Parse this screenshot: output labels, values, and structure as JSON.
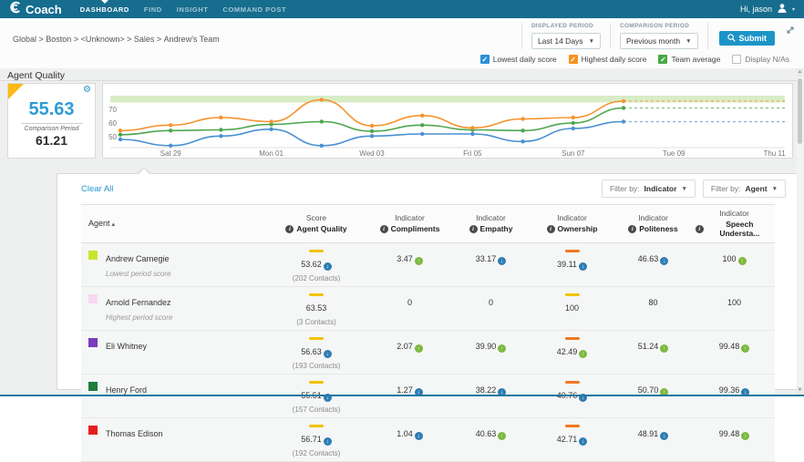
{
  "header": {
    "logo_text": "Coach",
    "nav": [
      {
        "label": "DASHBOARD",
        "active": true
      },
      {
        "label": "FIND",
        "active": false
      },
      {
        "label": "INSIGHT",
        "active": false
      },
      {
        "label": "COMMAND POST",
        "active": false
      }
    ],
    "user_greeting": "Hi, jason"
  },
  "subheader": {
    "breadcrumb": [
      "Global",
      "Boston",
      "<Unknown>",
      "Sales",
      "Andrew's Team"
    ],
    "displayed_period": {
      "label": "DISPLAYED PERIOD",
      "value": "Last 14 Days"
    },
    "comparison_period": {
      "label": "COMPARISON PERIOD",
      "value": "Previous month"
    },
    "submit_label": "Submit"
  },
  "legend_toggles": [
    {
      "label": "Lowest daily score",
      "checked": true,
      "color": "#2b8fd6"
    },
    {
      "label": "Highest daily score",
      "checked": true,
      "color": "#f5921e"
    },
    {
      "label": "Team average",
      "checked": true,
      "color": "#45a845"
    },
    {
      "label": "Display N/As",
      "checked": false,
      "color": "#cccccc"
    }
  ],
  "kpi": {
    "section_title": "Agent Quality",
    "score": "55.63",
    "comparison_label": "Comparison Period",
    "comparison_score": "61.21"
  },
  "chart_data": {
    "type": "line",
    "title": "Agent Quality",
    "x": [
      "Fri 28",
      "Sat 29",
      "Sun 30",
      "Mon 01",
      "Tue 02",
      "Wed 03",
      "Thu 04",
      "Fri 05",
      "Sat 06",
      "Sun 07",
      "Mon 08"
    ],
    "x_axis_labels": [
      "Sat 29",
      "Mon 01",
      "Wed 03",
      "Fri 05",
      "Sun 07",
      "Tue 09",
      "Thu 11"
    ],
    "days_displayed": 14,
    "series": [
      {
        "name": "Lowest daily score",
        "color": "#4a90d2",
        "values": [
          48,
          43.5,
          50.5,
          55.5,
          43.5,
          50.5,
          52,
          52,
          46.5,
          56,
          61
        ]
      },
      {
        "name": "Team average",
        "color": "#4ca64c",
        "values": [
          51.5,
          54.5,
          55,
          59,
          61,
          54,
          58.5,
          55,
          54.5,
          60,
          71
        ]
      },
      {
        "name": "Highest daily score",
        "color": "#f5922f",
        "values": [
          54.5,
          58.5,
          64,
          61,
          77,
          58,
          65.5,
          56.5,
          63,
          64,
          76
        ]
      }
    ],
    "projection_dashed": true,
    "y_ticks": [
      50,
      60,
      70
    ],
    "ylim": [
      42,
      82
    ],
    "target_band": [
      75,
      80
    ],
    "grid": false,
    "legend_position": "top-right-toggles"
  },
  "table": {
    "clear_all_label": "Clear All",
    "filters": [
      {
        "label": "Filter by:",
        "value": "Indicator"
      },
      {
        "label": "Filter by:",
        "value": "Agent"
      }
    ],
    "columns": [
      {
        "top": "Agent",
        "sort": "asc"
      },
      {
        "top": "Score",
        "bottom": "Agent Quality"
      },
      {
        "top": "Indicator",
        "bottom": "Compliments"
      },
      {
        "top": "Indicator",
        "bottom": "Empathy"
      },
      {
        "top": "Indicator",
        "bottom": "Ownership"
      },
      {
        "top": "Indicator",
        "bottom": "Politeness"
      },
      {
        "top": "Indicator",
        "bottom": "Speech Understa..."
      }
    ],
    "rows": [
      {
        "name": "Andrew Carnegie",
        "swatch": "#c7e52e",
        "subtitle": "Lowest period score",
        "score": {
          "dash": "yellow",
          "value": "53.62",
          "trend": "down",
          "contacts": "(202 Contacts)"
        },
        "indicators": [
          {
            "value": "3.47",
            "trend": "up"
          },
          {
            "value": "33.17",
            "trend": "down"
          },
          {
            "value": "39.11",
            "trend": "down",
            "dash": "orange"
          },
          {
            "value": "46.63",
            "trend": "down"
          },
          {
            "value": "100",
            "trend": "up"
          }
        ]
      },
      {
        "name": "Arnold Fernandez",
        "swatch": "#f8d8f2",
        "subtitle": "Highest period score",
        "score": {
          "dash": "yellow",
          "value": "63.53",
          "trend": null,
          "contacts": "(3 Contacts)"
        },
        "indicators": [
          {
            "value": "0",
            "trend": null
          },
          {
            "value": "0",
            "trend": null
          },
          {
            "value": "100",
            "trend": null,
            "dash": "yellow"
          },
          {
            "value": "80",
            "trend": null
          },
          {
            "value": "100",
            "trend": null
          }
        ]
      },
      {
        "name": "Eli Whitney",
        "swatch": "#7a3bbe",
        "subtitle": "",
        "score": {
          "dash": "yellow",
          "value": "56.63",
          "trend": "down",
          "contacts": "(193 Contacts)"
        },
        "indicators": [
          {
            "value": "2.07",
            "trend": "up"
          },
          {
            "value": "39.90",
            "trend": "up"
          },
          {
            "value": "42.49",
            "trend": "up",
            "dash": "orange"
          },
          {
            "value": "51.24",
            "trend": "up"
          },
          {
            "value": "99.48",
            "trend": "up"
          }
        ]
      },
      {
        "name": "Henry Ford",
        "swatch": "#1d7d3c",
        "subtitle": "",
        "score": {
          "dash": "yellow",
          "value": "55.51",
          "trend": "down",
          "contacts": "(157 Contacts)"
        },
        "indicators": [
          {
            "value": "1.27",
            "trend": "down"
          },
          {
            "value": "38.22",
            "trend": "down"
          },
          {
            "value": "40.76",
            "trend": "down",
            "dash": "orange"
          },
          {
            "value": "50.70",
            "trend": "up"
          },
          {
            "value": "99.36",
            "trend": "down"
          }
        ]
      },
      {
        "name": "Thomas Edison",
        "swatch": "#e51c1c",
        "subtitle": "",
        "score": {
          "dash": "yellow",
          "value": "56.71",
          "trend": "down",
          "contacts": "(192 Contacts)"
        },
        "indicators": [
          {
            "value": "1.04",
            "trend": "down"
          },
          {
            "value": "40.63",
            "trend": "up"
          },
          {
            "value": "42.71",
            "trend": "down",
            "dash": "orange"
          },
          {
            "value": "48.91",
            "trend": "down"
          },
          {
            "value": "99.48",
            "trend": "up"
          }
        ]
      }
    ]
  },
  "colors": {
    "header_teal": "#176d8e",
    "accent_blue": "#2196c9",
    "trend_up": "#7cb93e",
    "trend_down": "#2e7db3",
    "dash_yellow": "#f2c200",
    "dash_orange": "#f07820",
    "band_green": "#d8ecc6",
    "kpi_corner_yellow": "#fdb913"
  }
}
